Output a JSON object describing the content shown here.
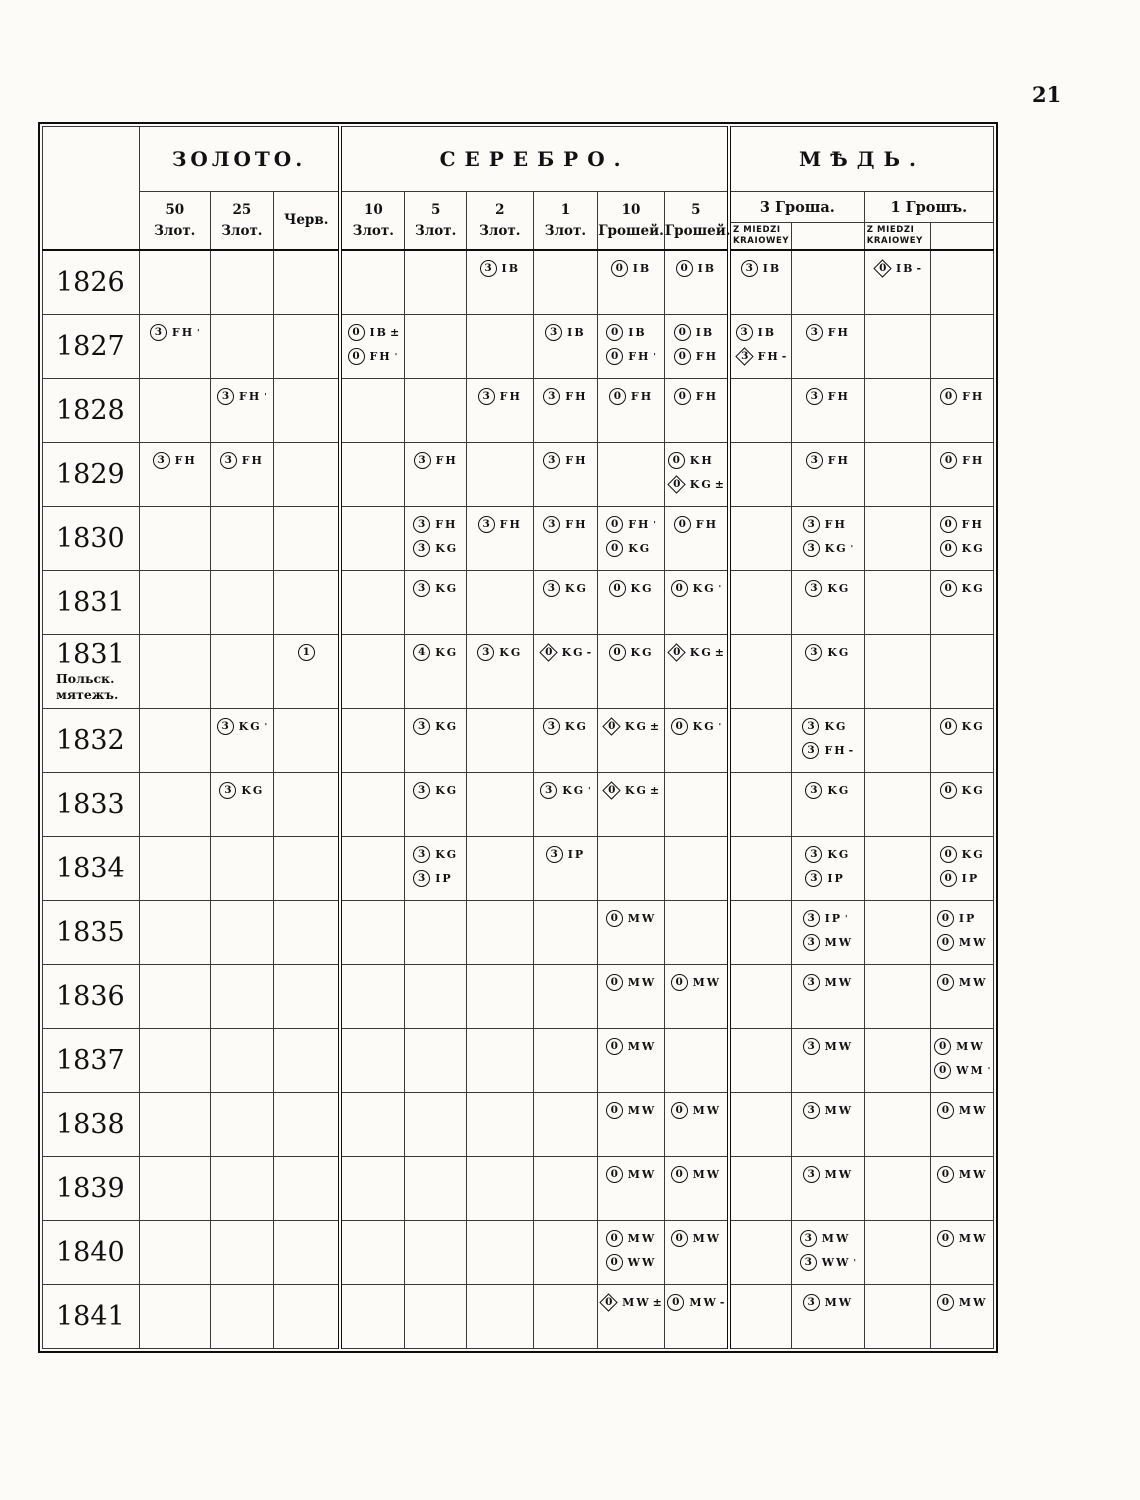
{
  "page": {
    "number": "21"
  },
  "table": {
    "groups": [
      {
        "label": "ЗОЛОТО."
      },
      {
        "label": "СЕРЕБРО."
      },
      {
        "label": "МѢДЬ."
      }
    ],
    "columns": [
      {
        "id": "g50",
        "label": "50\nЗлот."
      },
      {
        "id": "g25",
        "label": "25\nЗлот."
      },
      {
        "id": "chv",
        "label": "Черв."
      },
      {
        "id": "s10z",
        "label": "10\nЗлот."
      },
      {
        "id": "s5z",
        "label": "5\nЗлот."
      },
      {
        "id": "s2z",
        "label": "2\nЗлот."
      },
      {
        "id": "s1z",
        "label": "1\nЗлот."
      },
      {
        "id": "s10g",
        "label": "10\nГрошей."
      },
      {
        "id": "s5g",
        "label": "5\nГрошей."
      }
    ],
    "copper": [
      {
        "label": "3 Гроша.",
        "sub": "Z MIEDZI\nKRAIOWEY"
      },
      {
        "label": "1 Грошъ.",
        "sub": "Z MIEDZI\nKRAIOWEY"
      }
    ],
    "rows": [
      {
        "year": "1826",
        "cells": {
          "s2z": [
            [
              "c",
              "3",
              "IB",
              ""
            ]
          ],
          "s10g": [
            [
              "c",
              "0",
              "IB",
              ""
            ]
          ],
          "s5g": [
            [
              "c",
              "0",
              "IB",
              ""
            ]
          ],
          "c3k": [
            [
              "c",
              "3",
              "IB",
              ""
            ]
          ],
          "c1k": [
            [
              "d",
              "0",
              "IB",
              "-"
            ]
          ]
        }
      },
      {
        "year": "1827",
        "cells": {
          "g50": [
            [
              "c",
              "3",
              "FH",
              "'"
            ]
          ],
          "s10z": [
            [
              "c",
              "0",
              "IB",
              "±"
            ],
            [
              "c",
              "0",
              "FH",
              "'"
            ]
          ],
          "s1z": [
            [
              "c",
              "3",
              "IB",
              ""
            ]
          ],
          "s10g": [
            [
              "c",
              "0",
              "IB",
              ""
            ],
            [
              "c",
              "0",
              "FH",
              "'"
            ]
          ],
          "s5g": [
            [
              "c",
              "0",
              "IB",
              ""
            ],
            [
              "c",
              "0",
              "FH",
              ""
            ]
          ],
          "c3k": [
            [
              "c",
              "3",
              "IB",
              ""
            ],
            [
              "d",
              "3",
              "FH",
              "-"
            ]
          ],
          "c3": [
            [
              "c",
              "3",
              "FH",
              ""
            ]
          ]
        }
      },
      {
        "year": "1828",
        "cells": {
          "g25": [
            [
              "c",
              "3",
              "FH",
              "'"
            ]
          ],
          "s2z": [
            [
              "c",
              "3",
              "FH",
              ""
            ]
          ],
          "s1z": [
            [
              "c",
              "3",
              "FH",
              ""
            ]
          ],
          "s10g": [
            [
              "c",
              "0",
              "FH",
              ""
            ]
          ],
          "s5g": [
            [
              "c",
              "0",
              "FH",
              ""
            ]
          ],
          "c3": [
            [
              "c",
              "3",
              "FH",
              ""
            ]
          ],
          "c1": [
            [
              "c",
              "0",
              "FH",
              ""
            ]
          ]
        }
      },
      {
        "year": "1829",
        "cells": {
          "g50": [
            [
              "c",
              "3",
              "FH",
              ""
            ]
          ],
          "g25": [
            [
              "c",
              "3",
              "FH",
              ""
            ]
          ],
          "s5z": [
            [
              "c",
              "3",
              "FH",
              ""
            ]
          ],
          "s1z": [
            [
              "c",
              "3",
              "FH",
              ""
            ]
          ],
          "s5g": [
            [
              "c",
              "0",
              "KH",
              ""
            ],
            [
              "d",
              "0",
              "KG",
              "±"
            ]
          ],
          "c3": [
            [
              "c",
              "3",
              "FH",
              ""
            ]
          ],
          "c1": [
            [
              "c",
              "0",
              "FH",
              ""
            ]
          ]
        }
      },
      {
        "year": "1830",
        "cells": {
          "s5z": [
            [
              "c",
              "3",
              "FH",
              ""
            ],
            [
              "c",
              "3",
              "KG",
              ""
            ]
          ],
          "s2z": [
            [
              "c",
              "3",
              "FH",
              ""
            ]
          ],
          "s1z": [
            [
              "c",
              "3",
              "FH",
              ""
            ]
          ],
          "s10g": [
            [
              "c",
              "0",
              "FH",
              "'"
            ],
            [
              "c",
              "0",
              "KG",
              ""
            ]
          ],
          "s5g": [
            [
              "c",
              "0",
              "FH",
              ""
            ]
          ],
          "c3": [
            [
              "c",
              "3",
              "FH",
              ""
            ],
            [
              "c",
              "3",
              "KG",
              "'"
            ]
          ],
          "c1": [
            [
              "c",
              "0",
              "FH",
              ""
            ],
            [
              "c",
              "0",
              "KG",
              ""
            ]
          ]
        }
      },
      {
        "year": "1831",
        "cells": {
          "s5z": [
            [
              "c",
              "3",
              "KG",
              ""
            ]
          ],
          "s1z": [
            [
              "c",
              "3",
              "KG",
              ""
            ]
          ],
          "s10g": [
            [
              "c",
              "0",
              "KG",
              ""
            ]
          ],
          "s5g": [
            [
              "c",
              "0",
              "KG",
              "'"
            ]
          ],
          "c3": [
            [
              "c",
              "3",
              "KG",
              ""
            ]
          ],
          "c1": [
            [
              "c",
              "0",
              "KG",
              ""
            ]
          ]
        }
      },
      {
        "year": "1831",
        "note": "Польск.\nмятежъ.",
        "tall": true,
        "cells": {
          "chv": [
            [
              "c",
              "1",
              "",
              ""
            ]
          ],
          "s5z": [
            [
              "c",
              "4",
              "KG",
              ""
            ]
          ],
          "s2z": [
            [
              "c",
              "3",
              "KG",
              ""
            ]
          ],
          "s1z": [
            [
              "d",
              "0",
              "KG",
              "-"
            ]
          ],
          "s10g": [
            [
              "c",
              "0",
              "KG",
              ""
            ]
          ],
          "s5g": [
            [
              "d",
              "0",
              "KG",
              "±"
            ]
          ],
          "c3": [
            [
              "c",
              "3",
              "KG",
              ""
            ]
          ]
        }
      },
      {
        "year": "1832",
        "cells": {
          "g25": [
            [
              "c",
              "3",
              "KG",
              "'"
            ]
          ],
          "s5z": [
            [
              "c",
              "3",
              "KG",
              ""
            ]
          ],
          "s1z": [
            [
              "c",
              "3",
              "KG",
              ""
            ]
          ],
          "s10g": [
            [
              "d",
              "0",
              "KG",
              "±"
            ]
          ],
          "s5g": [
            [
              "c",
              "0",
              "KG",
              "'"
            ]
          ],
          "c3": [
            [
              "c",
              "3",
              "KG",
              ""
            ],
            [
              "c",
              "3",
              "FH",
              "-"
            ]
          ],
          "c1": [
            [
              "c",
              "0",
              "KG",
              ""
            ]
          ]
        }
      },
      {
        "year": "1833",
        "cells": {
          "g25": [
            [
              "c",
              "3",
              "KG",
              ""
            ]
          ],
          "s5z": [
            [
              "c",
              "3",
              "KG",
              ""
            ]
          ],
          "s1z": [
            [
              "c",
              "3",
              "KG",
              "'"
            ]
          ],
          "s10g": [
            [
              "d",
              "0",
              "KG",
              "±"
            ]
          ],
          "c3": [
            [
              "c",
              "3",
              "KG",
              ""
            ]
          ],
          "c1": [
            [
              "c",
              "0",
              "KG",
              ""
            ]
          ]
        }
      },
      {
        "year": "1834",
        "cells": {
          "s5z": [
            [
              "c",
              "3",
              "KG",
              ""
            ],
            [
              "c",
              "3",
              "IP",
              ""
            ]
          ],
          "s1z": [
            [
              "c",
              "3",
              "IP",
              ""
            ]
          ],
          "c3": [
            [
              "c",
              "3",
              "KG",
              ""
            ],
            [
              "c",
              "3",
              "IP",
              ""
            ]
          ],
          "c1": [
            [
              "c",
              "0",
              "KG",
              ""
            ],
            [
              "c",
              "0",
              "IP",
              ""
            ]
          ]
        }
      },
      {
        "year": "1835",
        "cells": {
          "s10g": [
            [
              "c",
              "0",
              "MW",
              ""
            ]
          ],
          "c3": [
            [
              "c",
              "3",
              "IP",
              "'"
            ],
            [
              "c",
              "3",
              "MW",
              ""
            ]
          ],
          "c1": [
            [
              "c",
              "0",
              "IP",
              ""
            ],
            [
              "c",
              "0",
              "MW",
              ""
            ]
          ]
        }
      },
      {
        "year": "1836",
        "cells": {
          "s10g": [
            [
              "c",
              "0",
              "MW",
              ""
            ]
          ],
          "s5g": [
            [
              "c",
              "0",
              "MW",
              ""
            ]
          ],
          "c3": [
            [
              "c",
              "3",
              "MW",
              ""
            ]
          ],
          "c1": [
            [
              "c",
              "0",
              "MW",
              ""
            ]
          ]
        }
      },
      {
        "year": "1837",
        "cells": {
          "s10g": [
            [
              "c",
              "0",
              "MW",
              ""
            ]
          ],
          "c3": [
            [
              "c",
              "3",
              "MW",
              ""
            ]
          ],
          "c1": [
            [
              "c",
              "0",
              "MW",
              ""
            ],
            [
              "c",
              "0",
              "WM",
              "'"
            ]
          ]
        }
      },
      {
        "year": "1838",
        "cells": {
          "s10g": [
            [
              "c",
              "0",
              "MW",
              ""
            ]
          ],
          "s5g": [
            [
              "c",
              "0",
              "MW",
              ""
            ]
          ],
          "c3": [
            [
              "c",
              "3",
              "MW",
              ""
            ]
          ],
          "c1": [
            [
              "c",
              "0",
              "MW",
              ""
            ]
          ]
        }
      },
      {
        "year": "1839",
        "cells": {
          "s10g": [
            [
              "c",
              "0",
              "MW",
              ""
            ]
          ],
          "s5g": [
            [
              "c",
              "0",
              "MW",
              ""
            ]
          ],
          "c3": [
            [
              "c",
              "3",
              "MW",
              ""
            ]
          ],
          "c1": [
            [
              "c",
              "0",
              "MW",
              ""
            ]
          ]
        }
      },
      {
        "year": "1840",
        "cells": {
          "s10g": [
            [
              "c",
              "0",
              "MW",
              ""
            ],
            [
              "c",
              "0",
              "WW",
              ""
            ]
          ],
          "s5g": [
            [
              "c",
              "0",
              "MW",
              ""
            ]
          ],
          "c3": [
            [
              "c",
              "3",
              "MW",
              ""
            ],
            [
              "c",
              "3",
              "WW",
              "'"
            ]
          ],
          "c1": [
            [
              "c",
              "0",
              "MW",
              ""
            ]
          ]
        }
      },
      {
        "year": "1841",
        "cells": {
          "s10g": [
            [
              "d",
              "0",
              "MW",
              "±"
            ]
          ],
          "s5g": [
            [
              "c",
              "0",
              "MW",
              "-"
            ]
          ],
          "c3": [
            [
              "c",
              "3",
              "MW",
              ""
            ]
          ],
          "c1": [
            [
              "c",
              "0",
              "MW",
              ""
            ]
          ]
        }
      }
    ]
  }
}
